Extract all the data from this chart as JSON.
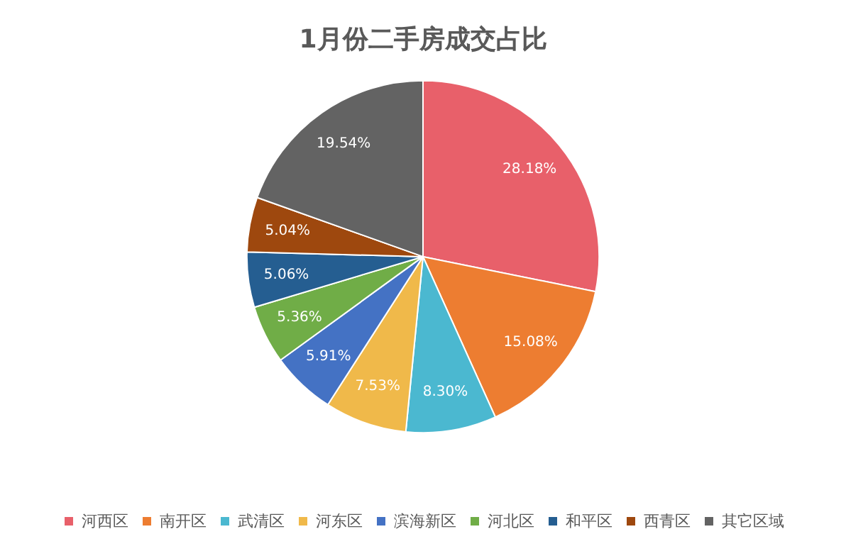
{
  "chart_data": {
    "type": "pie",
    "title": "1月份二手房成交占比",
    "categories": [
      "河西区",
      "南开区",
      "武清区",
      "河东区",
      "滨海新区",
      "河北区",
      "和平区",
      "西青区",
      "其它区域"
    ],
    "values": [
      28.18,
      15.08,
      8.3,
      7.53,
      5.91,
      5.36,
      5.06,
      5.04,
      19.54
    ],
    "value_labels": [
      "28.18%",
      "15.08%",
      "8.30%",
      "7.53%",
      "5.91%",
      "5.36%",
      "5.06%",
      "5.04%",
      "19.54%"
    ],
    "colors": [
      "#e8606a",
      "#ed7d31",
      "#4bb8d0",
      "#f0b94a",
      "#4472c4",
      "#70ad47",
      "#255e91",
      "#9e480e",
      "#636363"
    ],
    "legend": "bottom"
  }
}
